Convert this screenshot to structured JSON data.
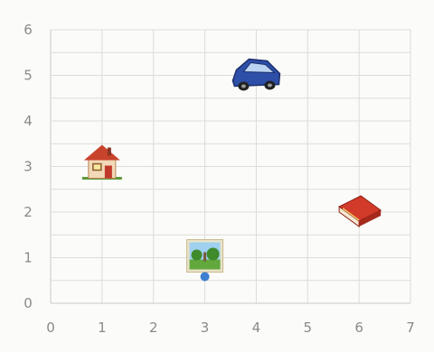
{
  "chart_data": {
    "type": "scatter",
    "title": "",
    "xlabel": "",
    "ylabel": "",
    "xlim": [
      0,
      7
    ],
    "ylim": [
      0,
      6
    ],
    "grid": true,
    "x_ticks": [
      "0",
      "1",
      "2",
      "3",
      "4",
      "5",
      "6",
      "7"
    ],
    "y_ticks": [
      "0",
      "1",
      "2",
      "3",
      "4",
      "5",
      "6"
    ],
    "points": [
      {
        "icon": "house-icon",
        "x": 1,
        "y": 3
      },
      {
        "icon": "car-icon",
        "x": 4,
        "y": 5
      },
      {
        "icon": "book-icon",
        "x": 6,
        "y": 2
      },
      {
        "icon": "park-picture-icon",
        "x": 3,
        "y": 1
      }
    ]
  },
  "colors": {
    "grid": "#dcdcdc",
    "tick_text": "#8a8a8a",
    "car": "#2d4fa8",
    "book": "#d23a2a",
    "house_roof": "#c8432b",
    "house_wall": "#f2d9b8",
    "park_sky": "#9fd0ef",
    "park_grass": "#62a83d"
  }
}
